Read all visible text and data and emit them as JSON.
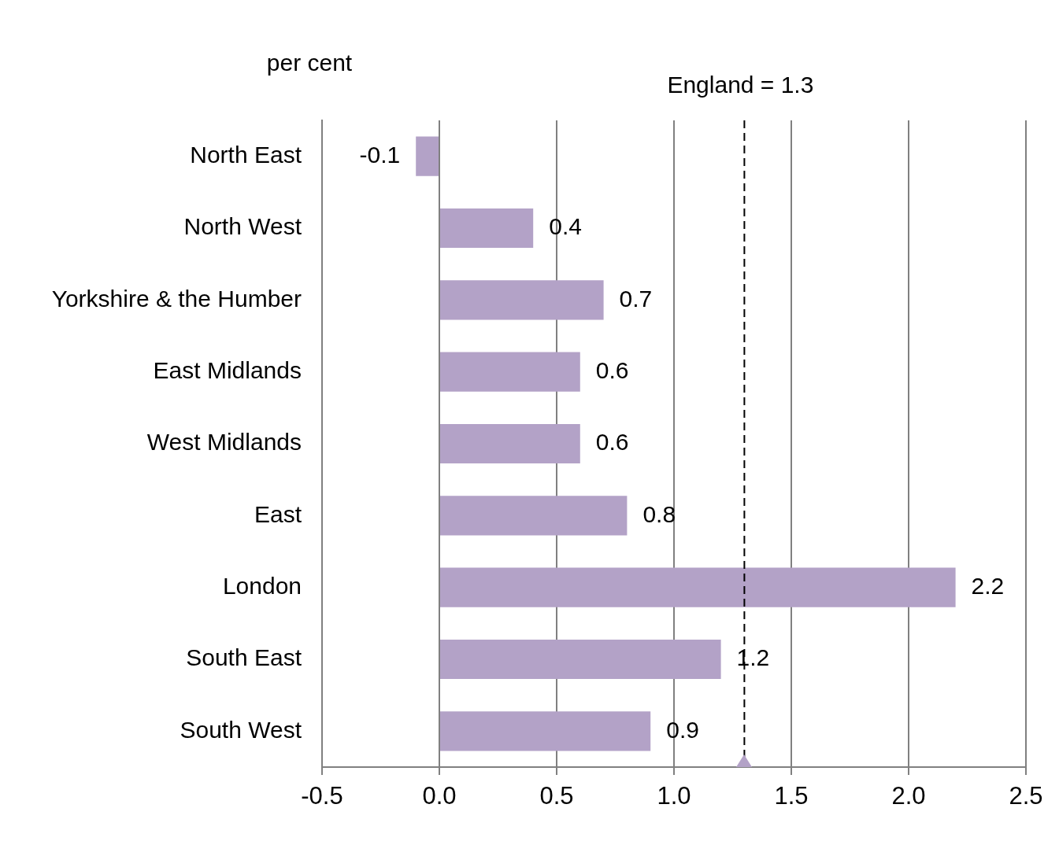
{
  "chart_data": {
    "type": "bar",
    "orientation": "horizontal",
    "xlabel": "per cent",
    "categories": [
      "North East",
      "North West",
      "Yorkshire & the Humber",
      "East Midlands",
      "West Midlands",
      "East",
      "London",
      "South East",
      "South West"
    ],
    "values": [
      -0.1,
      0.4,
      0.7,
      0.6,
      0.6,
      0.8,
      2.2,
      1.2,
      0.9
    ],
    "color": "#b3a2c7",
    "data_labels": true,
    "xlim": [
      -0.5,
      2.5
    ],
    "xticks": [
      {
        "value": -0.5,
        "label": "-0.5"
      },
      {
        "value": 0,
        "label": "0.0"
      },
      {
        "value": 0.5,
        "label": "0.5"
      },
      {
        "value": 1,
        "label": "1.0"
      },
      {
        "value": 1.5,
        "label": "1.5"
      },
      {
        "value": 2,
        "label": "2.0"
      },
      {
        "value": 2.5,
        "label": "2.5"
      }
    ],
    "grid": "x",
    "legend": false,
    "ref_lines": [
      {
        "axis": "x",
        "value": 1.3,
        "label": "England = 1.3",
        "color": "#000000",
        "line_style": "dashed"
      }
    ]
  }
}
